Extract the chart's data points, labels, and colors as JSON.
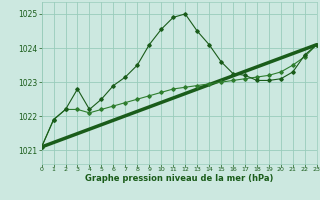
{
  "title": "Graphe pression niveau de la mer (hPa)",
  "bg_color": "#cce8e0",
  "grid_color": "#99ccbb",
  "line_color_dark": "#1a5c1a",
  "line_color_med": "#2e7d2e",
  "xmin": 0,
  "xmax": 23,
  "ymin": 1020.6,
  "ymax": 1025.35,
  "yticks": [
    1021,
    1022,
    1023,
    1024,
    1025
  ],
  "xticks": [
    0,
    1,
    2,
    3,
    4,
    5,
    6,
    7,
    8,
    9,
    10,
    11,
    12,
    13,
    14,
    15,
    16,
    17,
    18,
    19,
    20,
    21,
    22,
    23
  ],
  "series1_x": [
    0,
    1,
    2,
    3,
    4,
    5,
    6,
    7,
    8,
    9,
    10,
    11,
    12,
    13,
    14,
    15,
    16,
    17,
    18,
    19,
    20,
    21,
    22,
    23
  ],
  "series1_y": [
    1021.1,
    1021.9,
    1022.2,
    1022.8,
    1022.2,
    1022.5,
    1022.9,
    1023.15,
    1023.5,
    1024.1,
    1024.55,
    1024.9,
    1025.0,
    1024.5,
    1024.1,
    1023.6,
    1023.25,
    1023.2,
    1023.05,
    1023.05,
    1023.1,
    1023.3,
    1023.8,
    1024.1
  ],
  "series2_x": [
    0,
    1,
    2,
    3,
    4,
    5,
    6,
    7,
    8,
    9,
    10,
    11,
    12,
    13,
    14,
    15,
    16,
    17,
    18,
    19,
    20,
    21,
    22,
    23
  ],
  "series2_y": [
    1021.1,
    1021.9,
    1022.2,
    1022.2,
    1022.1,
    1022.2,
    1022.3,
    1022.4,
    1022.5,
    1022.6,
    1022.7,
    1022.8,
    1022.85,
    1022.9,
    1022.95,
    1023.0,
    1023.05,
    1023.1,
    1023.15,
    1023.2,
    1023.3,
    1023.5,
    1023.75,
    1024.1
  ],
  "trend_x": [
    0,
    23
  ],
  "trend_y": [
    1021.1,
    1024.1
  ]
}
